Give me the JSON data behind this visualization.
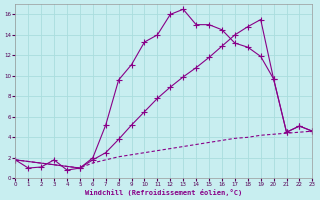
{
  "xlabel": "Windchill (Refroidissement éolien,°C)",
  "bg_color": "#c8eef0",
  "grid_color": "#aadddd",
  "line_color": "#880088",
  "xlim": [
    0,
    23
  ],
  "ylim": [
    0,
    17
  ],
  "xticks": [
    0,
    1,
    2,
    3,
    4,
    5,
    6,
    7,
    8,
    9,
    10,
    11,
    12,
    13,
    14,
    15,
    16,
    17,
    18,
    19,
    20,
    21,
    22,
    23
  ],
  "yticks": [
    0,
    2,
    4,
    6,
    8,
    10,
    12,
    14,
    16
  ],
  "line1_x": [
    0,
    1,
    2,
    3,
    4,
    5,
    6,
    7,
    8,
    9,
    10,
    11,
    12,
    13,
    14,
    15,
    16,
    17,
    18,
    19,
    20,
    21,
    22,
    23
  ],
  "line1_y": [
    1.8,
    1.0,
    1.1,
    1.8,
    0.8,
    1.0,
    2.0,
    5.2,
    9.6,
    11.1,
    13.3,
    14.0,
    16.0,
    16.5,
    15.0,
    15.0,
    14.5,
    13.2,
    12.8,
    11.9,
    9.7,
    4.5,
    5.1,
    4.6
  ],
  "line2_x": [
    0,
    5,
    6,
    7,
    8,
    9,
    10,
    11,
    12,
    13,
    14,
    15,
    16,
    17,
    18,
    19,
    20,
    21,
    22,
    23
  ],
  "line2_y": [
    1.8,
    1.0,
    1.8,
    2.5,
    3.8,
    5.2,
    6.5,
    7.8,
    8.9,
    9.9,
    10.8,
    11.8,
    12.9,
    14.0,
    14.8,
    15.5,
    9.7,
    4.5,
    5.1,
    4.6
  ],
  "line3_x": [
    0,
    5,
    6,
    7,
    8,
    9,
    10,
    11,
    12,
    13,
    14,
    15,
    16,
    17,
    18,
    19,
    20,
    21,
    22,
    23
  ],
  "line3_y": [
    1.8,
    1.0,
    1.5,
    1.8,
    2.1,
    2.3,
    2.5,
    2.7,
    2.9,
    3.1,
    3.3,
    3.5,
    3.7,
    3.9,
    4.0,
    4.2,
    4.3,
    4.4,
    4.5,
    4.6
  ]
}
